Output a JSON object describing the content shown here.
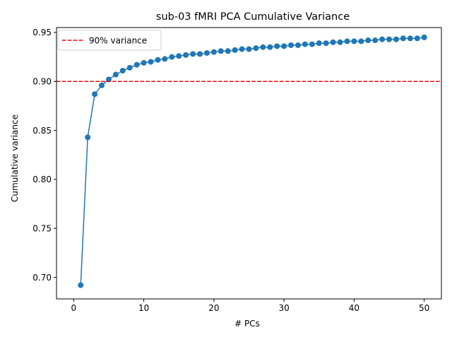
{
  "chart_data": {
    "type": "line",
    "title": "sub-03 fMRI PCA Cumulative Variance",
    "xlabel": "# PCs",
    "ylabel": "Cumulative variance",
    "xlim": [
      -2.45,
      52.45
    ],
    "ylim": [
      0.678,
      0.955
    ],
    "xticks": [
      0,
      10,
      20,
      30,
      40,
      50
    ],
    "yticks": [
      0.7,
      0.75,
      0.8,
      0.85,
      0.9,
      0.95
    ],
    "xtick_labels": [
      "0",
      "10",
      "20",
      "30",
      "40",
      "50"
    ],
    "ytick_labels": [
      "0.70",
      "0.75",
      "0.80",
      "0.85",
      "0.90",
      "0.95"
    ],
    "grid": false,
    "legend_position": "upper-left",
    "colors": {
      "series": "#1f77b4",
      "threshold": "#ff0000"
    },
    "series": [
      {
        "x": [
          1,
          2,
          3,
          4,
          5,
          6,
          7,
          8,
          9,
          10,
          11,
          12,
          13,
          14,
          15,
          16,
          17,
          18,
          19,
          20,
          21,
          22,
          23,
          24,
          25,
          26,
          27,
          28,
          29,
          30,
          31,
          32,
          33,
          34,
          35,
          36,
          37,
          38,
          39,
          40,
          41,
          42,
          43,
          44,
          45,
          46,
          47,
          48,
          49,
          50
        ],
        "values": [
          0.692,
          0.843,
          0.887,
          0.896,
          0.902,
          0.907,
          0.911,
          0.914,
          0.917,
          0.919,
          0.92,
          0.922,
          0.923,
          0.925,
          0.926,
          0.927,
          0.928,
          0.928,
          0.929,
          0.93,
          0.931,
          0.931,
          0.932,
          0.933,
          0.933,
          0.934,
          0.935,
          0.935,
          0.936,
          0.936,
          0.937,
          0.937,
          0.938,
          0.938,
          0.939,
          0.939,
          0.94,
          0.94,
          0.941,
          0.941,
          0.941,
          0.942,
          0.942,
          0.943,
          0.943,
          0.943,
          0.944,
          0.944,
          0.944,
          0.945
        ]
      }
    ],
    "threshold": {
      "name": "90% variance",
      "y": 0.9,
      "style": "dashed"
    }
  }
}
